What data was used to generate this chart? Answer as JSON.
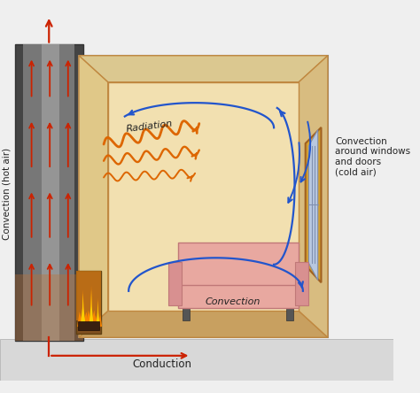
{
  "bg_color": "#efefef",
  "red": "#cc2200",
  "blue": "#2255cc",
  "orange": "#dd6600",
  "label_conv_hot": "Convection (hot air)",
  "label_conduction": "Conduction",
  "label_radiation": "Radiation",
  "label_convection": "Convection",
  "label_conv_window": "Convection\naround windows\nand doors\n(cold air)"
}
